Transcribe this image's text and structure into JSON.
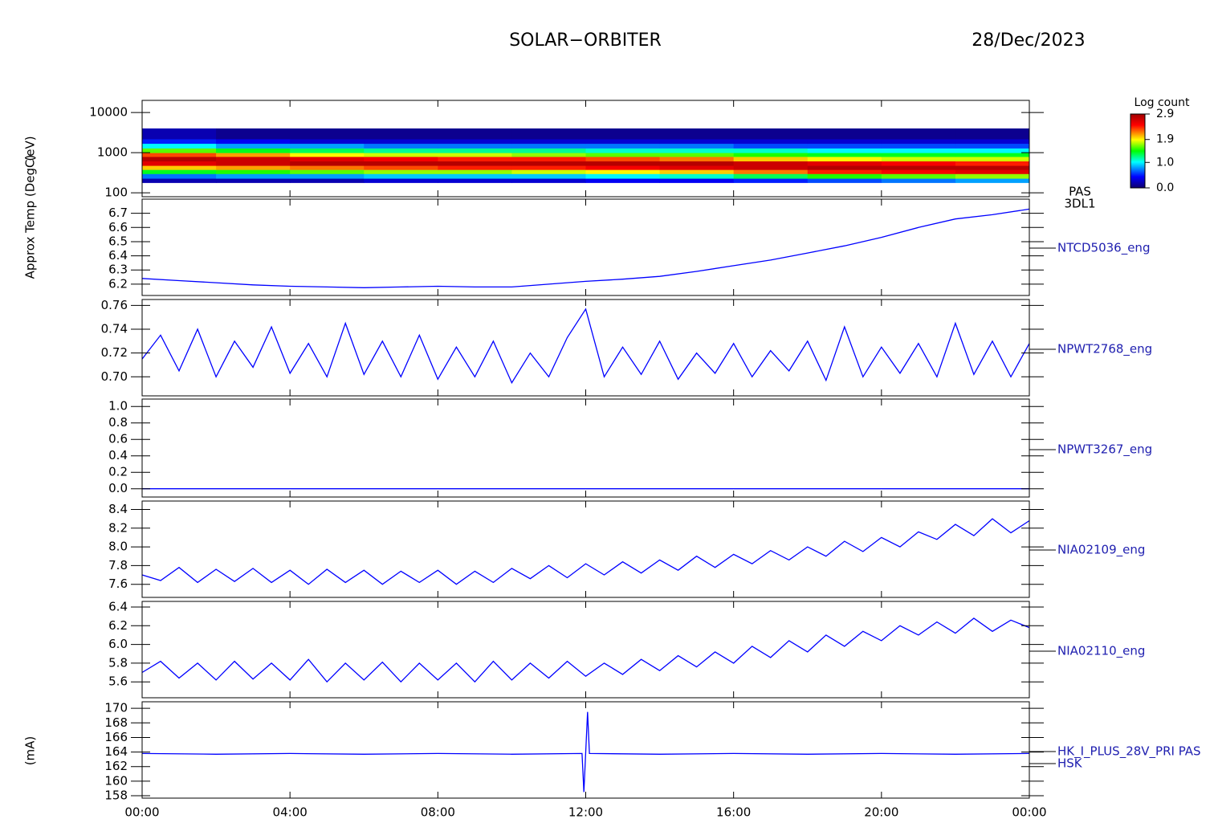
{
  "title": "SOLAR−ORBITER",
  "date": "28/Dec/2023",
  "chart_data": [
    {
      "type": "heatmap",
      "label": [
        "PAS",
        "3DL1"
      ],
      "ylabel": "(eV)",
      "log": true,
      "xlim": [
        0,
        24
      ],
      "ylim": [
        80,
        20000
      ],
      "yticks": [
        100,
        1000,
        10000
      ],
      "xbins": [
        0,
        2,
        4,
        6,
        8,
        10,
        12,
        14,
        16,
        18,
        20,
        22,
        24
      ],
      "ybins": [
        180,
        230,
        300,
        380,
        480,
        620,
        800,
        1000,
        1300,
        1700,
        2200,
        4000,
        16000
      ],
      "z": [
        [
          0.2,
          0.2,
          0.2,
          0.3,
          0.3,
          0.3,
          0.4,
          0.4,
          0.5,
          0.6,
          0.7,
          0.8
        ],
        [
          0.7,
          0.8,
          0.8,
          0.9,
          0.9,
          0.9,
          1.0,
          1.1,
          1.3,
          1.5,
          1.6,
          1.7
        ],
        [
          1.4,
          1.5,
          1.6,
          1.7,
          1.7,
          1.8,
          1.9,
          2.0,
          2.2,
          2.4,
          2.5,
          2.6
        ],
        [
          2.0,
          2.1,
          2.2,
          2.3,
          2.4,
          2.4,
          2.5,
          2.6,
          2.7,
          2.8,
          2.8,
          2.8
        ],
        [
          2.6,
          2.7,
          2.8,
          2.8,
          2.8,
          2.8,
          2.8,
          2.8,
          2.7,
          2.6,
          2.5,
          2.4
        ],
        [
          2.8,
          2.7,
          2.6,
          2.5,
          2.4,
          2.4,
          2.3,
          2.2,
          2.0,
          1.9,
          1.8,
          1.8
        ],
        [
          2.3,
          2.1,
          1.9,
          1.8,
          1.8,
          1.7,
          1.6,
          1.6,
          1.5,
          1.4,
          1.4,
          1.4
        ],
        [
          1.6,
          1.4,
          1.3,
          1.2,
          1.2,
          1.2,
          1.1,
          1.1,
          1.1,
          1.0,
          1.0,
          1.0
        ],
        [
          1.0,
          0.8,
          0.8,
          0.7,
          0.7,
          0.7,
          0.7,
          0.7,
          0.6,
          0.6,
          0.6,
          0.6
        ],
        [
          0.5,
          0.4,
          0.3,
          0.3,
          0.3,
          0.3,
          0.3,
          0.3,
          0.3,
          0.3,
          0.3,
          0.3
        ],
        [
          0.2,
          0.1,
          0.1,
          0.1,
          0.1,
          0.1,
          0.1,
          0.1,
          0.1,
          0.1,
          0.1,
          0.1
        ],
        [
          null,
          null,
          null,
          null,
          null,
          null,
          null,
          null,
          null,
          null,
          null,
          null
        ]
      ],
      "zlim": [
        0,
        2.9
      ],
      "colorbar": {
        "label": "Log count",
        "ticks": [
          {
            "value": 0,
            "label": "0.0"
          },
          {
            "value": 1,
            "label": "1.0"
          },
          1.9,
          2.9
        ]
      }
    },
    {
      "type": "line",
      "ylabel": "Approx Temp (DegC)",
      "xlim": [
        0,
        24
      ],
      "ylim": [
        6.12,
        6.8
      ],
      "yticks": [
        6.2,
        6.3,
        6.4,
        6.5,
        6.6,
        6.7
      ],
      "x": [
        0,
        1,
        2,
        3,
        4,
        5,
        6,
        7,
        8,
        9,
        10,
        11,
        12,
        13,
        14,
        15,
        16,
        17,
        18,
        19,
        20,
        21,
        22,
        23,
        24
      ],
      "series": [
        {
          "name": "NTCD5036_eng",
          "color": "#0000ff",
          "values": [
            6.24,
            6.225,
            6.21,
            6.195,
            6.185,
            6.18,
            6.175,
            6.18,
            6.185,
            6.18,
            6.18,
            6.2,
            6.22,
            6.235,
            6.255,
            6.29,
            6.33,
            6.37,
            6.42,
            6.47,
            6.53,
            6.6,
            6.66,
            6.69,
            6.73
          ]
        }
      ]
    },
    {
      "type": "line",
      "xlim": [
        0,
        24
      ],
      "ylim": [
        0.684,
        0.765
      ],
      "yticks": [
        {
          "value": 0.7,
          "label": "0.70"
        },
        0.72,
        0.74,
        0.76
      ],
      "x": [
        0,
        0.5,
        1,
        1.5,
        2,
        2.5,
        3,
        3.5,
        4,
        4.5,
        5,
        5.5,
        6,
        6.5,
        7,
        7.5,
        8,
        8.5,
        9,
        9.5,
        10,
        10.5,
        11,
        11.5,
        12,
        12.5,
        13,
        13.5,
        14,
        14.5,
        15,
        15.5,
        16,
        16.5,
        17,
        17.5,
        18,
        18.5,
        19,
        19.5,
        20,
        20.5,
        21,
        21.5,
        22,
        22.5,
        23,
        23.5,
        24
      ],
      "series": [
        {
          "name": "NPWT2768_eng",
          "color": "#0000ff",
          "values": [
            0.715,
            0.735,
            0.705,
            0.74,
            0.7,
            0.73,
            0.708,
            0.742,
            0.703,
            0.728,
            0.7,
            0.745,
            0.702,
            0.73,
            0.7,
            0.735,
            0.698,
            0.725,
            0.7,
            0.73,
            0.695,
            0.72,
            0.7,
            0.733,
            0.757,
            0.7,
            0.725,
            0.702,
            0.73,
            0.698,
            0.72,
            0.703,
            0.728,
            0.7,
            0.722,
            0.705,
            0.73,
            0.697,
            0.742,
            0.7,
            0.725,
            0.703,
            0.728,
            0.7,
            0.745,
            0.702,
            0.73,
            0.7,
            0.728
          ]
        }
      ]
    },
    {
      "type": "line",
      "xlim": [
        0,
        24
      ],
      "ylim": [
        -0.1,
        1.09
      ],
      "yticks": [
        {
          "value": 0,
          "label": "0.0"
        },
        0.2,
        0.4,
        0.6,
        0.8,
        {
          "value": 1,
          "label": "1.0"
        }
      ],
      "x": [
        0,
        1,
        2,
        3,
        4,
        5,
        6,
        7,
        8,
        9,
        10,
        11,
        12,
        13,
        14,
        15,
        16,
        17,
        18,
        19,
        20,
        21,
        22,
        23,
        24
      ],
      "series": [
        {
          "name": "NPWT3267_eng",
          "color": "#0000ff",
          "values": [
            0,
            0,
            0,
            0,
            0,
            0,
            0,
            0,
            0,
            0,
            0,
            0,
            0,
            0,
            0,
            0,
            0,
            0,
            0,
            0,
            0,
            0,
            0,
            0,
            0
          ]
        }
      ]
    },
    {
      "type": "line",
      "xlim": [
        0,
        24
      ],
      "ylim": [
        7.46,
        8.49
      ],
      "yticks": [
        7.6,
        7.8,
        {
          "value": 8,
          "label": "8.0"
        },
        8.2,
        8.4
      ],
      "x": [
        0,
        0.5,
        1,
        1.5,
        2,
        2.5,
        3,
        3.5,
        4,
        4.5,
        5,
        5.5,
        6,
        6.5,
        7,
        7.5,
        8,
        8.5,
        9,
        9.5,
        10,
        10.5,
        11,
        11.5,
        12,
        12.5,
        13,
        13.5,
        14,
        14.5,
        15,
        15.5,
        16,
        16.5,
        17,
        17.5,
        18,
        18.5,
        19,
        19.5,
        20,
        20.5,
        21,
        21.5,
        22,
        22.5,
        23,
        23.5,
        24
      ],
      "series": [
        {
          "name": "NIA02109_eng",
          "color": "#0000ff",
          "values": [
            7.7,
            7.64,
            7.78,
            7.62,
            7.76,
            7.63,
            7.77,
            7.62,
            7.75,
            7.6,
            7.76,
            7.62,
            7.75,
            7.6,
            7.74,
            7.62,
            7.75,
            7.6,
            7.74,
            7.62,
            7.77,
            7.66,
            7.8,
            7.67,
            7.82,
            7.7,
            7.84,
            7.72,
            7.86,
            7.75,
            7.9,
            7.78,
            7.92,
            7.82,
            7.96,
            7.86,
            8.0,
            7.9,
            8.06,
            7.95,
            8.1,
            8.0,
            8.16,
            8.08,
            8.24,
            8.12,
            8.3,
            8.15,
            8.28
          ]
        }
      ]
    },
    {
      "type": "line",
      "xlim": [
        0,
        24
      ],
      "ylim": [
        5.43,
        6.46
      ],
      "yticks": [
        5.6,
        5.8,
        {
          "value": 6,
          "label": "6.0"
        },
        6.2,
        6.4
      ],
      "x": [
        0,
        0.5,
        1,
        1.5,
        2,
        2.5,
        3,
        3.5,
        4,
        4.5,
        5,
        5.5,
        6,
        6.5,
        7,
        7.5,
        8,
        8.5,
        9,
        9.5,
        10,
        10.5,
        11,
        11.5,
        12,
        12.5,
        13,
        13.5,
        14,
        14.5,
        15,
        15.5,
        16,
        16.5,
        17,
        17.5,
        18,
        18.5,
        19,
        19.5,
        20,
        20.5,
        21,
        21.5,
        22,
        22.5,
        23,
        23.5,
        24
      ],
      "series": [
        {
          "name": "NIA02110_eng",
          "color": "#0000ff",
          "values": [
            5.7,
            5.82,
            5.64,
            5.8,
            5.62,
            5.82,
            5.63,
            5.8,
            5.62,
            5.84,
            5.6,
            5.8,
            5.62,
            5.81,
            5.6,
            5.8,
            5.62,
            5.8,
            5.6,
            5.82,
            5.62,
            5.8,
            5.64,
            5.82,
            5.66,
            5.8,
            5.68,
            5.84,
            5.72,
            5.88,
            5.76,
            5.92,
            5.8,
            5.98,
            5.86,
            6.04,
            5.92,
            6.1,
            5.98,
            6.14,
            6.04,
            6.2,
            6.1,
            6.24,
            6.12,
            6.28,
            6.14,
            6.26,
            6.18
          ]
        }
      ]
    },
    {
      "type": "line",
      "ylabel": "(mA)",
      "xlim": [
        0,
        24
      ],
      "ylim": [
        157.67,
        170.9
      ],
      "yticks": [
        158,
        160,
        162,
        164,
        166,
        168,
        170
      ],
      "xticks": [
        {
          "value": 0,
          "label": "00:00"
        },
        {
          "value": 4,
          "label": "04:00"
        },
        {
          "value": 8,
          "label": "08:00"
        },
        {
          "value": 12,
          "label": "12:00"
        },
        {
          "value": 16,
          "label": "16:00"
        },
        {
          "value": 20,
          "label": "20:00"
        },
        {
          "value": 24,
          "label": "00:00"
        }
      ],
      "x": [
        0,
        2,
        4,
        6,
        8,
        10,
        11.9,
        11.95,
        12.05,
        12.1,
        14,
        16,
        18,
        20,
        22,
        24
      ],
      "series": [
        {
          "name": "HK_I_PLUS_28V_PRI PAS",
          "subname": "HSK",
          "color": "#0000ff",
          "values": [
            163.8,
            163.7,
            163.8,
            163.7,
            163.8,
            163.7,
            163.8,
            158.5,
            169.5,
            163.8,
            163.7,
            163.8,
            163.7,
            163.8,
            163.7,
            163.8
          ]
        }
      ]
    }
  ]
}
